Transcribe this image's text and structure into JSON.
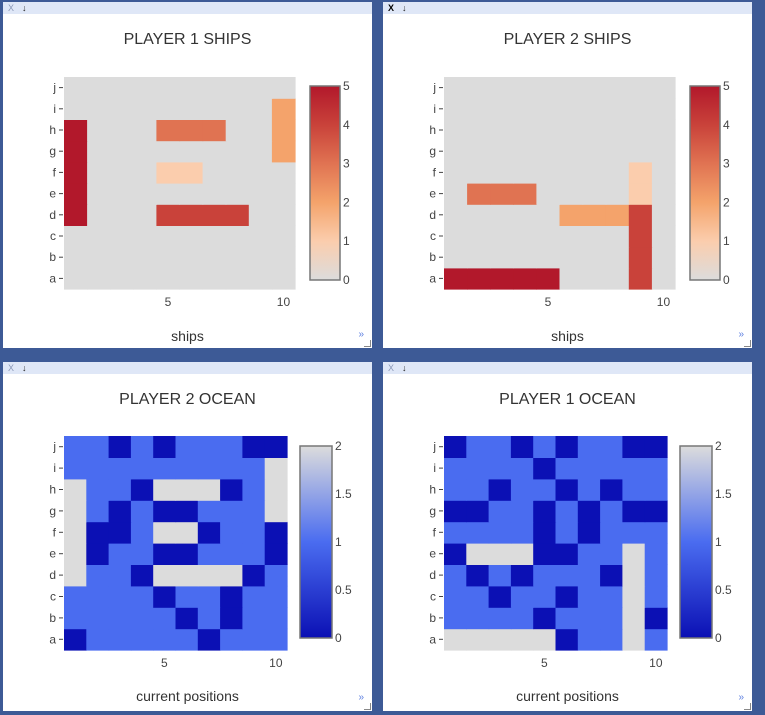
{
  "y_labels": [
    "a",
    "b",
    "c",
    "d",
    "e",
    "f",
    "g",
    "h",
    "i",
    "j"
  ],
  "x_ticks": [
    5,
    10
  ],
  "colors": {
    "ships_scale": [
      "#dcdcdc",
      "#fbcdad",
      "#f4a36b",
      "#e07352",
      "#c9423a",
      "#b2182b"
    ],
    "ocean_scale": [
      "#0b10b4",
      "#4a6cf0",
      "#dcdcdc"
    ]
  },
  "panels": [
    {
      "title": "PLAYER 1 SHIPS",
      "xlabel": "ships",
      "close": "X",
      "close_active": false,
      "download": "↓",
      "expand": "»",
      "scale": "ships",
      "colorbar_ticks": [
        "0",
        "1",
        "2",
        "3",
        "4",
        "5"
      ],
      "zmax": 5,
      "z": [
        [
          0,
          0,
          0,
          0,
          0,
          0,
          0,
          0,
          0,
          0
        ],
        [
          0,
          0,
          0,
          0,
          0,
          0,
          0,
          0,
          0,
          0
        ],
        [
          0,
          0,
          0,
          0,
          0,
          0,
          0,
          0,
          0,
          0
        ],
        [
          5,
          0,
          0,
          0,
          4,
          4,
          4,
          4,
          0,
          0
        ],
        [
          5,
          0,
          0,
          0,
          0,
          0,
          0,
          0,
          0,
          0
        ],
        [
          5,
          0,
          0,
          0,
          1,
          1,
          0,
          0,
          0,
          0
        ],
        [
          5,
          0,
          0,
          0,
          0,
          0,
          0,
          0,
          0,
          2
        ],
        [
          5,
          0,
          0,
          0,
          3,
          3,
          3,
          0,
          0,
          2
        ],
        [
          0,
          0,
          0,
          0,
          0,
          0,
          0,
          0,
          0,
          2
        ],
        [
          0,
          0,
          0,
          0,
          0,
          0,
          0,
          0,
          0,
          0
        ]
      ]
    },
    {
      "title": "PLAYER 2 SHIPS",
      "xlabel": "ships",
      "close": "X",
      "close_active": true,
      "download": "↓",
      "expand": "»",
      "scale": "ships",
      "colorbar_ticks": [
        "0",
        "1",
        "2",
        "3",
        "4",
        "5"
      ],
      "zmax": 5,
      "z": [
        [
          5,
          5,
          5,
          5,
          5,
          0,
          0,
          0,
          4,
          0
        ],
        [
          0,
          0,
          0,
          0,
          0,
          0,
          0,
          0,
          4,
          0
        ],
        [
          0,
          0,
          0,
          0,
          0,
          0,
          0,
          0,
          4,
          0
        ],
        [
          0,
          0,
          0,
          0,
          0,
          2,
          2,
          2,
          4,
          0
        ],
        [
          0,
          3,
          3,
          3,
          0,
          0,
          0,
          0,
          1,
          0
        ],
        [
          0,
          0,
          0,
          0,
          0,
          0,
          0,
          0,
          1,
          0
        ],
        [
          0,
          0,
          0,
          0,
          0,
          0,
          0,
          0,
          0,
          0
        ],
        [
          0,
          0,
          0,
          0,
          0,
          0,
          0,
          0,
          0,
          0
        ],
        [
          0,
          0,
          0,
          0,
          0,
          0,
          0,
          0,
          0,
          0
        ],
        [
          0,
          0,
          0,
          0,
          0,
          0,
          0,
          0,
          0,
          0
        ]
      ]
    },
    {
      "title": "PLAYER 2 OCEAN",
      "xlabel": "current positions",
      "close": "X",
      "close_active": false,
      "download": "↓",
      "expand": "»",
      "scale": "ocean",
      "colorbar_ticks": [
        "0",
        "0.5",
        "1",
        "1.5",
        "2"
      ],
      "zmax": 2,
      "z": [
        [
          0,
          1,
          1,
          1,
          1,
          1,
          0,
          1,
          1,
          1
        ],
        [
          1,
          1,
          1,
          1,
          1,
          0,
          1,
          0,
          1,
          1
        ],
        [
          1,
          1,
          1,
          1,
          0,
          1,
          1,
          0,
          1,
          1
        ],
        [
          2,
          1,
          1,
          0,
          2,
          2,
          2,
          2,
          0,
          1
        ],
        [
          2,
          0,
          1,
          1,
          0,
          0,
          1,
          1,
          1,
          0
        ],
        [
          2,
          0,
          0,
          1,
          2,
          2,
          0,
          1,
          1,
          0
        ],
        [
          2,
          1,
          0,
          1,
          0,
          0,
          1,
          1,
          1,
          2
        ],
        [
          2,
          1,
          1,
          0,
          2,
          2,
          2,
          0,
          1,
          2
        ],
        [
          1,
          1,
          1,
          1,
          1,
          1,
          1,
          1,
          1,
          2
        ],
        [
          1,
          1,
          0,
          1,
          0,
          1,
          1,
          1,
          0,
          0
        ]
      ]
    },
    {
      "title": "PLAYER 1 OCEAN",
      "xlabel": "current positions",
      "close": "X",
      "close_active": false,
      "download": "↓",
      "expand": "»",
      "scale": "ocean",
      "colorbar_ticks": [
        "0",
        "0.5",
        "1",
        "1.5",
        "2"
      ],
      "zmax": 2,
      "z": [
        [
          2,
          2,
          2,
          2,
          2,
          0,
          1,
          1,
          2,
          1
        ],
        [
          1,
          1,
          1,
          1,
          0,
          1,
          1,
          1,
          2,
          0
        ],
        [
          1,
          1,
          0,
          1,
          1,
          0,
          1,
          1,
          2,
          1
        ],
        [
          1,
          0,
          1,
          0,
          1,
          1,
          1,
          0,
          2,
          1
        ],
        [
          0,
          2,
          2,
          2,
          0,
          0,
          1,
          1,
          2,
          1
        ],
        [
          1,
          1,
          1,
          1,
          0,
          1,
          0,
          1,
          1,
          1
        ],
        [
          0,
          0,
          1,
          1,
          0,
          1,
          0,
          1,
          0,
          0
        ],
        [
          1,
          1,
          0,
          1,
          1,
          0,
          1,
          0,
          1,
          1
        ],
        [
          1,
          1,
          1,
          1,
          0,
          1,
          1,
          1,
          1,
          1
        ],
        [
          0,
          1,
          1,
          0,
          1,
          0,
          1,
          1,
          0,
          0
        ]
      ]
    }
  ]
}
